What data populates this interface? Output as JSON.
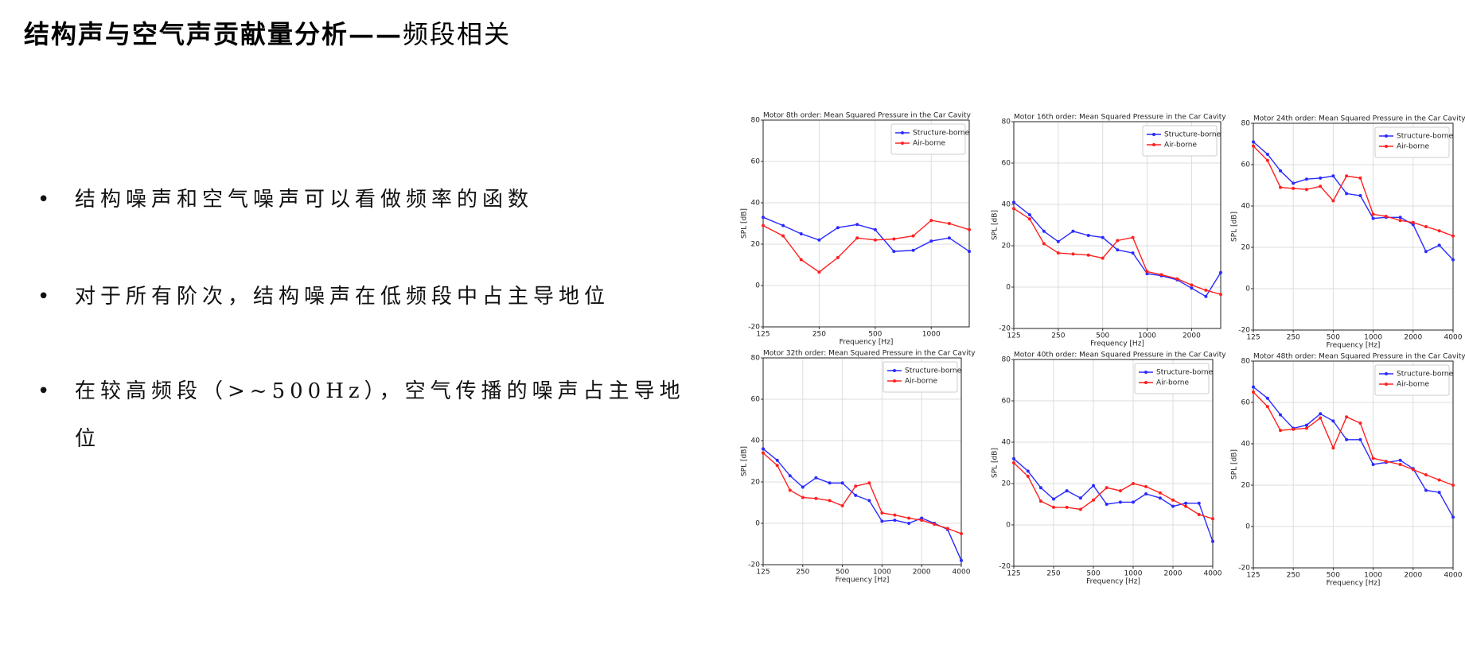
{
  "title_main": "结构声与空气声贡献量分析——",
  "title_sub": "频段相关",
  "bullets": [
    "结构噪声和空气噪声可以看做频率的函数",
    "对于所有阶次，结构噪声在低频段中占主导地位",
    "在较高频段（>~500Hz），空气传播的噪声占主导地位"
  ],
  "chart_data": [
    {
      "type": "line",
      "title": "Motor 8th order: Mean Squared Pressure in the Car Cavity",
      "x_label": "Frequency [Hz]",
      "y_label": "SPL [dB]",
      "x": [
        125,
        160,
        200,
        250,
        315,
        400,
        500,
        630,
        800,
        1000,
        1250,
        1600
      ],
      "xlim": [
        125,
        1600
      ],
      "xticks": [
        125,
        250,
        500,
        1000
      ],
      "xscale": "log",
      "ylim": [
        -20,
        80
      ],
      "yticks": [
        -20,
        0,
        20,
        40,
        60,
        80
      ],
      "grid": true,
      "legend": "upper right",
      "series": [
        {
          "name": "Structure-borne",
          "color": "#2a2aff",
          "values": [
            33,
            29,
            25,
            22,
            28,
            29.5,
            27,
            16.5,
            17,
            21.5,
            23,
            16.5
          ]
        },
        {
          "name": "Air-borne",
          "color": "#ff2020",
          "values": [
            29,
            24,
            12.5,
            6.5,
            13.5,
            23,
            22,
            22.5,
            24,
            31.5,
            30,
            27
          ]
        }
      ]
    },
    {
      "type": "line",
      "title": "Motor 16th order: Mean Squared Pressure in the Car Cavity",
      "x_label": "Frequency [Hz]",
      "y_label": "SPL [dB]",
      "x": [
        125,
        160,
        200,
        250,
        315,
        400,
        500,
        630,
        800,
        1000,
        1250,
        1600,
        2000,
        2500,
        3150
      ],
      "xlim": [
        125,
        3150
      ],
      "xticks": [
        125,
        250,
        500,
        1000,
        2000
      ],
      "xscale": "log",
      "ylim": [
        -20,
        80
      ],
      "yticks": [
        -20,
        0,
        20,
        40,
        60,
        80
      ],
      "grid": true,
      "legend": "upper right",
      "series": [
        {
          "name": "Structure-borne",
          "color": "#2a2aff",
          "values": [
            41,
            35,
            27,
            22,
            27,
            25,
            24,
            18,
            16.5,
            6.5,
            5.5,
            3.5,
            -0.5,
            -4.5,
            7
          ]
        },
        {
          "name": "Air-borne",
          "color": "#ff2020",
          "values": [
            38,
            33,
            21,
            16.5,
            16,
            15.5,
            14,
            22.5,
            24,
            7.5,
            6,
            4,
            1,
            -1.5,
            -3.5
          ]
        }
      ]
    },
    {
      "type": "line",
      "title": "Motor 24th order: Mean Squared Pressure in the Car Cavity",
      "x_label": "Frequency [Hz]",
      "y_label": "SPL [dB]",
      "x": [
        125,
        160,
        200,
        250,
        315,
        400,
        500,
        630,
        800,
        1000,
        1250,
        1600,
        2000,
        2500,
        3150,
        4000
      ],
      "xlim": [
        125,
        4000
      ],
      "xticks": [
        125,
        250,
        500,
        1000,
        2000,
        4000
      ],
      "xscale": "log",
      "ylim": [
        -20,
        80
      ],
      "yticks": [
        -20,
        0,
        20,
        40,
        60,
        80
      ],
      "grid": true,
      "legend": "upper right",
      "series": [
        {
          "name": "Structure-borne",
          "color": "#2a2aff",
          "values": [
            71,
            65,
            57,
            51,
            53,
            53.5,
            54.5,
            46,
            45,
            34,
            34.5,
            34.5,
            31,
            18,
            21,
            14
          ]
        },
        {
          "name": "Air-borne",
          "color": "#ff2020",
          "values": [
            69,
            62,
            49,
            48.5,
            48,
            49.5,
            42.5,
            54.5,
            53.5,
            36,
            35,
            33,
            32,
            30,
            28,
            25.5
          ]
        }
      ]
    },
    {
      "type": "line",
      "title": "Motor 32th order: Mean Squared Pressure in the Car Cavity",
      "x_label": "Frequency [Hz]",
      "y_label": "SPL [dB]",
      "x": [
        125,
        160,
        200,
        250,
        315,
        400,
        500,
        630,
        800,
        1000,
        1250,
        1600,
        2000,
        2500,
        3150,
        4000
      ],
      "xlim": [
        125,
        4000
      ],
      "xticks": [
        125,
        250,
        500,
        1000,
        2000,
        4000
      ],
      "xscale": "log",
      "ylim": [
        -20,
        80
      ],
      "yticks": [
        -20,
        0,
        20,
        40,
        60,
        80
      ],
      "grid": true,
      "legend": "upper right",
      "series": [
        {
          "name": "Structure-borne",
          "color": "#2a2aff",
          "values": [
            36,
            30.5,
            23,
            17.5,
            22,
            19.5,
            19.5,
            13.5,
            11,
            1,
            1.5,
            0,
            2.5,
            0,
            -3,
            -18
          ]
        },
        {
          "name": "Air-borne",
          "color": "#ff2020",
          "values": [
            34,
            28,
            16,
            12.5,
            12,
            11,
            8.5,
            18,
            19.5,
            5,
            4,
            2.5,
            1.5,
            -0.5,
            -2.5,
            -5
          ]
        }
      ]
    },
    {
      "type": "line",
      "title": "Motor 40th order: Mean Squared Pressure in the Car Cavity",
      "x_label": "Frequency [Hz]",
      "y_label": "SPL [dB]",
      "x": [
        125,
        160,
        200,
        250,
        315,
        400,
        500,
        630,
        800,
        1000,
        1250,
        1600,
        2000,
        2500,
        3150,
        4000
      ],
      "xlim": [
        125,
        4000
      ],
      "xticks": [
        125,
        250,
        500,
        1000,
        2000,
        4000
      ],
      "xscale": "log",
      "ylim": [
        -20,
        80
      ],
      "yticks": [
        -20,
        0,
        20,
        40,
        60,
        80
      ],
      "grid": true,
      "legend": "upper right",
      "series": [
        {
          "name": "Structure-borne",
          "color": "#2a2aff",
          "values": [
            32,
            26,
            18,
            12.5,
            16.5,
            13,
            19,
            10,
            11,
            11,
            15,
            13,
            9,
            10.5,
            10.5,
            -8
          ]
        },
        {
          "name": "Air-borne",
          "color": "#ff2020",
          "values": [
            30,
            23.5,
            11.5,
            8.5,
            8.5,
            7.5,
            12,
            18,
            16.5,
            20,
            18.5,
            15.5,
            12,
            9,
            5,
            3
          ]
        }
      ]
    },
    {
      "type": "line",
      "title": "Motor 48th order: Mean Squared Pressure in the Car Cavity",
      "x_label": "Frequency [Hz]",
      "y_label": "SPL [dB]",
      "x": [
        125,
        160,
        200,
        250,
        315,
        400,
        500,
        630,
        800,
        1000,
        1250,
        1600,
        2000,
        2500,
        3150,
        4000
      ],
      "xlim": [
        125,
        4000
      ],
      "xticks": [
        125,
        250,
        500,
        1000,
        2000,
        4000
      ],
      "xscale": "log",
      "ylim": [
        -20,
        80
      ],
      "yticks": [
        -20,
        0,
        20,
        40,
        60,
        80
      ],
      "grid": true,
      "legend": "upper right",
      "series": [
        {
          "name": "Structure-borne",
          "color": "#2a2aff",
          "values": [
            67.5,
            62,
            54,
            47.5,
            49,
            54.5,
            51,
            42,
            42,
            30,
            31,
            32,
            28,
            17.5,
            16.5,
            4.5
          ]
        },
        {
          "name": "Air-borne",
          "color": "#ff2020",
          "values": [
            65,
            58,
            46.5,
            47,
            47.5,
            52.5,
            38,
            53,
            50,
            33,
            31.5,
            30,
            27.5,
            25,
            22.5,
            20
          ]
        }
      ]
    }
  ]
}
